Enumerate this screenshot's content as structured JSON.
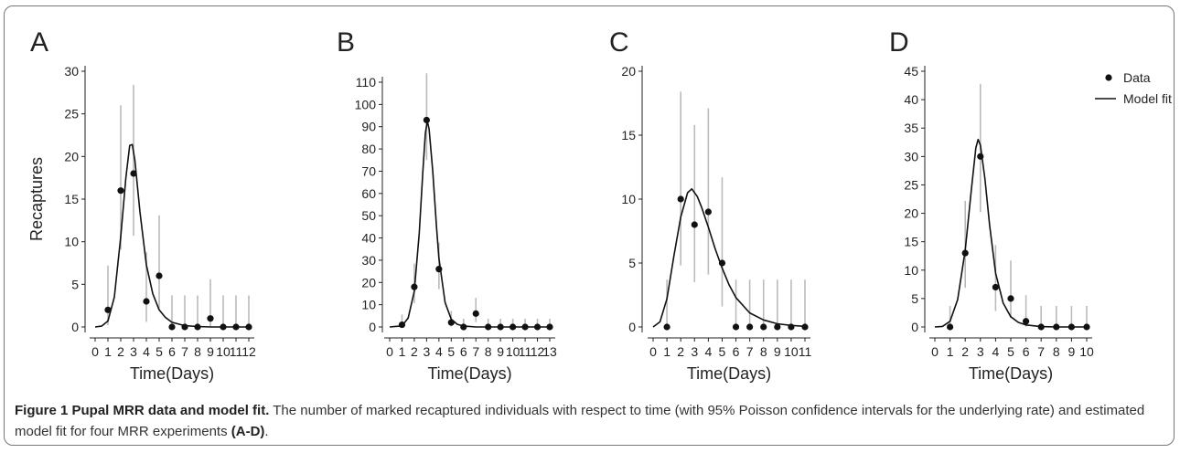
{
  "colors": {
    "data": "#111111",
    "errorbar": "#bbbbbb",
    "fit": "#111111",
    "border": "#777777"
  },
  "legend": {
    "data_label": "Data",
    "fit_label": "Model fit",
    "position": "top-right of panel D"
  },
  "caption": {
    "title": "Figure 1 Pupal MRR data and model fit.",
    "text_before": " The number of marked recaptured individuals with respect to time (with 95% Poisson confidence intervals for the underlying rate) and estimated model fit for four MRR experiments ",
    "bold_ref": "(A-D)",
    "text_after": "."
  },
  "chart_data": [
    {
      "type": "scatter",
      "panel": "A",
      "xlabel": "Time(Days)",
      "ylabel": "Recaptures",
      "xlim": [
        0,
        12
      ],
      "ylim": [
        0,
        30
      ],
      "xticks": [
        0,
        1,
        2,
        3,
        4,
        5,
        6,
        7,
        8,
        9,
        10,
        11,
        12
      ],
      "yticks": [
        0,
        5,
        10,
        15,
        20,
        25,
        30
      ],
      "points": [
        {
          "x": 1,
          "y": 2,
          "lo": 0.2,
          "hi": 7.2
        },
        {
          "x": 2,
          "y": 16,
          "lo": 9.1,
          "hi": 26
        },
        {
          "x": 3,
          "y": 18,
          "lo": 10.7,
          "hi": 28.4
        },
        {
          "x": 4,
          "y": 3,
          "lo": 0.6,
          "hi": 8.8
        },
        {
          "x": 5,
          "y": 6,
          "lo": 2.2,
          "hi": 13.1
        },
        {
          "x": 6,
          "y": 0,
          "lo": 0,
          "hi": 3.7
        },
        {
          "x": 7,
          "y": 0,
          "lo": 0,
          "hi": 3.7
        },
        {
          "x": 8,
          "y": 0,
          "lo": 0,
          "hi": 3.7
        },
        {
          "x": 9,
          "y": 1,
          "lo": 0,
          "hi": 5.6
        },
        {
          "x": 10,
          "y": 0,
          "lo": 0,
          "hi": 3.7
        },
        {
          "x": 11,
          "y": 0,
          "lo": 0,
          "hi": 3.7
        },
        {
          "x": 12,
          "y": 0,
          "lo": 0,
          "hi": 3.7
        }
      ],
      "fit": [
        [
          0,
          0
        ],
        [
          0.5,
          0.1
        ],
        [
          1,
          0.7
        ],
        [
          1.5,
          3.5
        ],
        [
          2,
          10.6
        ],
        [
          2.4,
          17.5
        ],
        [
          2.7,
          21.3
        ],
        [
          2.9,
          21.4
        ],
        [
          3.1,
          19.6
        ],
        [
          3.5,
          13.5
        ],
        [
          4,
          7.3
        ],
        [
          4.5,
          3.9
        ],
        [
          5,
          2.0
        ],
        [
          5.5,
          1.1
        ],
        [
          6,
          0.55
        ],
        [
          7,
          0.15
        ],
        [
          8,
          0.05
        ],
        [
          9,
          0
        ],
        [
          12,
          0
        ]
      ]
    },
    {
      "type": "scatter",
      "panel": "B",
      "xlabel": "Time(Days)",
      "ylabel": "",
      "xlim": [
        0,
        13
      ],
      "ylim": [
        0,
        110
      ],
      "xticks": [
        0,
        1,
        2,
        3,
        4,
        5,
        6,
        7,
        8,
        9,
        10,
        11,
        12,
        13
      ],
      "yticks": [
        0,
        10,
        20,
        30,
        40,
        50,
        60,
        70,
        80,
        90,
        100,
        110
      ],
      "points": [
        {
          "x": 1,
          "y": 1,
          "lo": 0,
          "hi": 5.6
        },
        {
          "x": 2,
          "y": 18,
          "lo": 10.7,
          "hi": 28.5
        },
        {
          "x": 3,
          "y": 93,
          "lo": 75,
          "hi": 114
        },
        {
          "x": 4,
          "y": 26,
          "lo": 17,
          "hi": 38
        },
        {
          "x": 5,
          "y": 2,
          "lo": 0.2,
          "hi": 7.2
        },
        {
          "x": 6,
          "y": 0,
          "lo": 0,
          "hi": 3.7
        },
        {
          "x": 7,
          "y": 6,
          "lo": 2.2,
          "hi": 13.1
        },
        {
          "x": 8,
          "y": 0,
          "lo": 0,
          "hi": 3.7
        },
        {
          "x": 9,
          "y": 0,
          "lo": 0,
          "hi": 3.7
        },
        {
          "x": 10,
          "y": 0,
          "lo": 0,
          "hi": 3.7
        },
        {
          "x": 11,
          "y": 0,
          "lo": 0,
          "hi": 3.7
        },
        {
          "x": 12,
          "y": 0,
          "lo": 0,
          "hi": 3.7
        },
        {
          "x": 13,
          "y": 0,
          "lo": 0,
          "hi": 3.7
        }
      ],
      "fit": [
        [
          0,
          0
        ],
        [
          1,
          0.5
        ],
        [
          1.5,
          4
        ],
        [
          2,
          16
        ],
        [
          2.4,
          42
        ],
        [
          2.7,
          70
        ],
        [
          2.9,
          87
        ],
        [
          3.05,
          92.5
        ],
        [
          3.2,
          89
        ],
        [
          3.5,
          70
        ],
        [
          3.8,
          45
        ],
        [
          4,
          31
        ],
        [
          4.5,
          11
        ],
        [
          5,
          3.5
        ],
        [
          5.5,
          1.2
        ],
        [
          6,
          0.4
        ],
        [
          7,
          0
        ],
        [
          13,
          0
        ]
      ]
    },
    {
      "type": "scatter",
      "panel": "C",
      "xlabel": "Time(Days)",
      "ylabel": "",
      "xlim": [
        0,
        11
      ],
      "ylim": [
        0,
        20
      ],
      "xticks": [
        0,
        1,
        2,
        3,
        4,
        5,
        6,
        7,
        8,
        9,
        10,
        11
      ],
      "yticks": [
        0,
        5,
        10,
        15,
        20
      ],
      "points": [
        {
          "x": 1,
          "y": 0,
          "lo": 0,
          "hi": 3.7
        },
        {
          "x": 2,
          "y": 10,
          "lo": 4.8,
          "hi": 18.4
        },
        {
          "x": 3,
          "y": 8,
          "lo": 3.5,
          "hi": 15.8
        },
        {
          "x": 4,
          "y": 9,
          "lo": 4.1,
          "hi": 17.1
        },
        {
          "x": 5,
          "y": 5,
          "lo": 1.6,
          "hi": 11.7
        },
        {
          "x": 6,
          "y": 0,
          "lo": 0,
          "hi": 3.7
        },
        {
          "x": 7,
          "y": 0,
          "lo": 0,
          "hi": 3.7
        },
        {
          "x": 8,
          "y": 0,
          "lo": 0,
          "hi": 3.7
        },
        {
          "x": 9,
          "y": 0,
          "lo": 0,
          "hi": 3.7
        },
        {
          "x": 10,
          "y": 0,
          "lo": 0,
          "hi": 3.7
        },
        {
          "x": 11,
          "y": 0,
          "lo": 0,
          "hi": 3.7
        }
      ],
      "fit": [
        [
          0,
          0
        ],
        [
          0.5,
          0.4
        ],
        [
          1,
          2.2
        ],
        [
          1.5,
          5.5
        ],
        [
          2,
          8.6
        ],
        [
          2.5,
          10.5
        ],
        [
          2.8,
          10.8
        ],
        [
          3.2,
          10.2
        ],
        [
          3.5,
          9.4
        ],
        [
          4,
          7.8
        ],
        [
          4.5,
          6.1
        ],
        [
          5,
          4.6
        ],
        [
          5.5,
          3.3
        ],
        [
          6,
          2.3
        ],
        [
          7,
          1.1
        ],
        [
          8,
          0.55
        ],
        [
          9,
          0.25
        ],
        [
          10,
          0.12
        ],
        [
          11,
          0.05
        ]
      ]
    },
    {
      "type": "scatter",
      "panel": "D",
      "xlabel": "Time(Days)",
      "ylabel": "",
      "xlim": [
        0,
        10
      ],
      "ylim": [
        0,
        45
      ],
      "xticks": [
        0,
        1,
        2,
        3,
        4,
        5,
        6,
        7,
        8,
        9,
        10
      ],
      "yticks": [
        0,
        5,
        10,
        15,
        20,
        25,
        30,
        35,
        40,
        45
      ],
      "points": [
        {
          "x": 1,
          "y": 0,
          "lo": 0,
          "hi": 3.7
        },
        {
          "x": 2,
          "y": 13,
          "lo": 6.9,
          "hi": 22.2
        },
        {
          "x": 3,
          "y": 30,
          "lo": 20.2,
          "hi": 42.8
        },
        {
          "x": 4,
          "y": 7,
          "lo": 2.8,
          "hi": 14.4
        },
        {
          "x": 5,
          "y": 5,
          "lo": 1.6,
          "hi": 11.7
        },
        {
          "x": 6,
          "y": 1,
          "lo": 0,
          "hi": 5.6
        },
        {
          "x": 7,
          "y": 0,
          "lo": 0,
          "hi": 3.7
        },
        {
          "x": 8,
          "y": 0,
          "lo": 0,
          "hi": 3.7
        },
        {
          "x": 9,
          "y": 0,
          "lo": 0,
          "hi": 3.7
        },
        {
          "x": 10,
          "y": 0,
          "lo": 0,
          "hi": 3.7
        }
      ],
      "fit": [
        [
          0,
          0
        ],
        [
          0.5,
          0.1
        ],
        [
          1,
          1.0
        ],
        [
          1.5,
          4.8
        ],
        [
          2,
          13.5
        ],
        [
          2.4,
          24
        ],
        [
          2.7,
          31.5
        ],
        [
          2.85,
          33
        ],
        [
          3,
          32
        ],
        [
          3.3,
          26
        ],
        [
          3.6,
          18
        ],
        [
          4,
          9.5
        ],
        [
          4.5,
          4.2
        ],
        [
          5,
          1.8
        ],
        [
          5.5,
          0.8
        ],
        [
          6,
          0.35
        ],
        [
          7,
          0.07
        ],
        [
          8,
          0
        ],
        [
          10,
          0
        ]
      ]
    }
  ]
}
